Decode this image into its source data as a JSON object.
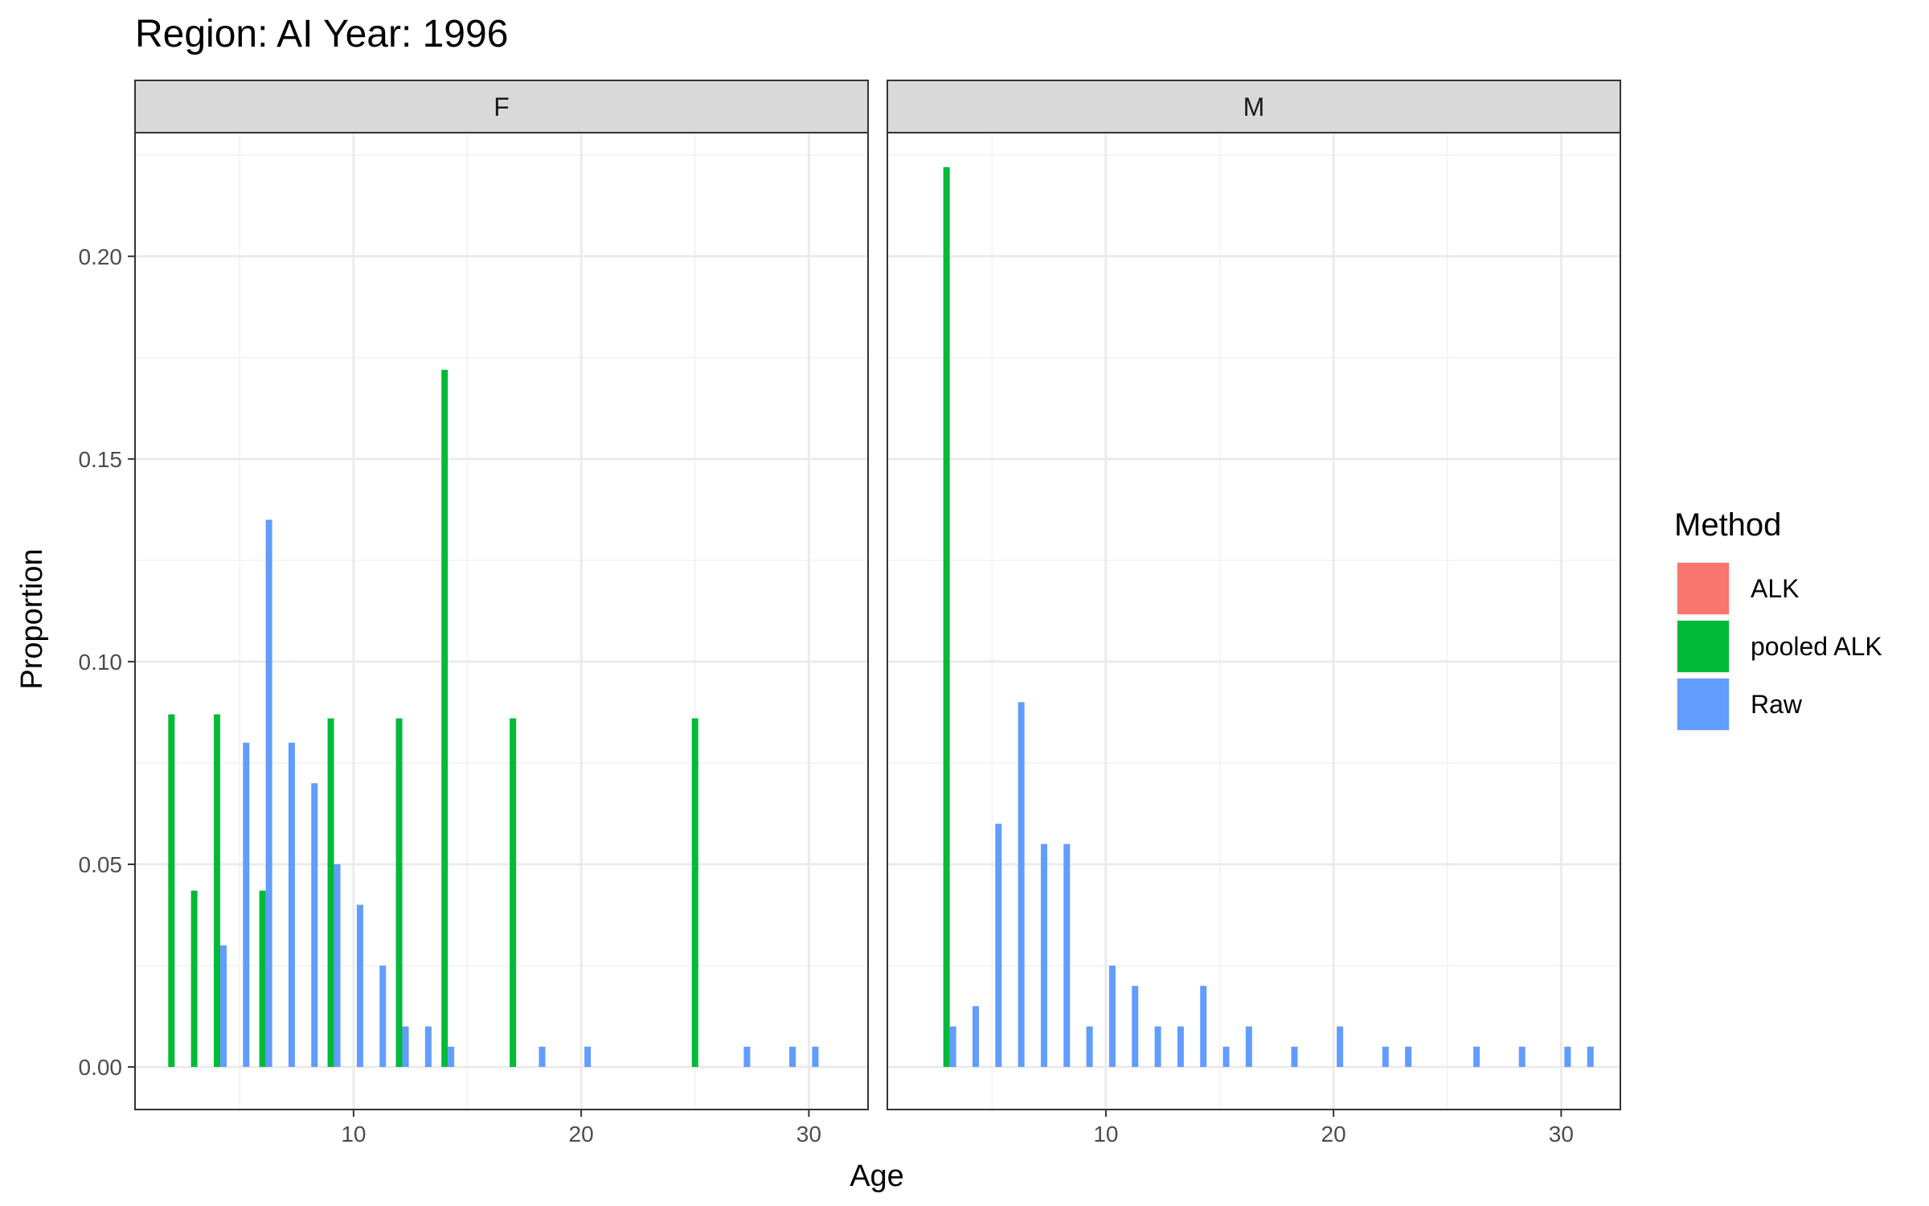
{
  "chart_data": {
    "type": "bar",
    "title": "Region: AI Year: 1996",
    "xlabel": "Age",
    "ylabel": "Proportion",
    "xlim": [
      0.4,
      32.6
    ],
    "ylim": [
      -0.0105,
      0.2305
    ],
    "xticks": [
      10,
      20,
      30
    ],
    "yticks": [
      0.0,
      0.05,
      0.1,
      0.15,
      0.2
    ],
    "ytick_labels": [
      "0.00",
      "0.05",
      "0.10",
      "0.15",
      "0.20"
    ],
    "grid": true,
    "legend": {
      "title": "Method",
      "position": "right",
      "entries": [
        {
          "name": "ALK",
          "color": "#F8766D"
        },
        {
          "name": "pooled ALK",
          "color": "#00BA38"
        },
        {
          "name": "Raw",
          "color": "#619CFF"
        }
      ]
    },
    "panels": [
      {
        "label": "F",
        "series": [
          {
            "name": "ALK",
            "x": [],
            "values": []
          },
          {
            "name": "pooled ALK",
            "x": [
              2,
              3,
              4,
              6,
              9,
              12,
              14,
              17,
              25
            ],
            "values": [
              0.087,
              0.0435,
              0.087,
              0.0435,
              0.086,
              0.086,
              0.172,
              0.086,
              0.086
            ]
          },
          {
            "name": "Raw",
            "x": [
              4,
              5,
              6,
              7,
              8,
              9,
              10,
              11,
              12,
              13,
              14,
              18,
              20,
              27,
              29,
              30
            ],
            "values": [
              0.03,
              0.08,
              0.135,
              0.08,
              0.07,
              0.05,
              0.04,
              0.025,
              0.01,
              0.01,
              0.005,
              0.005,
              0.005,
              0.005,
              0.005,
              0.005
            ]
          }
        ]
      },
      {
        "label": "M",
        "series": [
          {
            "name": "ALK",
            "x": [],
            "values": []
          },
          {
            "name": "pooled ALK",
            "x": [
              3
            ],
            "values": [
              0.222
            ]
          },
          {
            "name": "Raw",
            "x": [
              3,
              4,
              5,
              6,
              7,
              8,
              9,
              10,
              11,
              12,
              13,
              14,
              15,
              16,
              18,
              20,
              22,
              23,
              26,
              28,
              30,
              31
            ],
            "values": [
              0.01,
              0.015,
              0.06,
              0.09,
              0.055,
              0.055,
              0.01,
              0.025,
              0.02,
              0.01,
              0.01,
              0.02,
              0.005,
              0.01,
              0.005,
              0.01,
              0.005,
              0.005,
              0.005,
              0.005,
              0.005,
              0.005
            ]
          }
        ]
      }
    ]
  }
}
